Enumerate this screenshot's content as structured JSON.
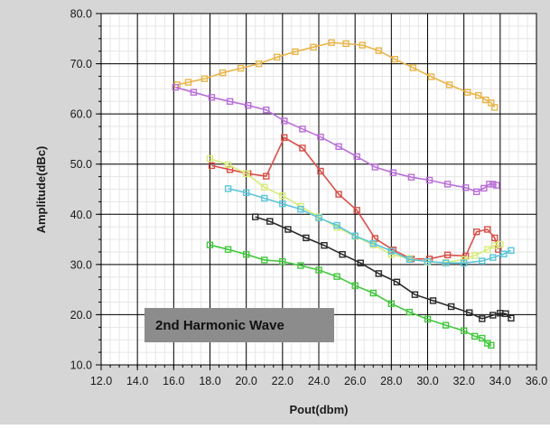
{
  "chart_data": {
    "type": "line",
    "title": "",
    "xlabel": "Pout(dbm)",
    "ylabel": "Amplitude(dBc)",
    "xlim": [
      12.0,
      36.0
    ],
    "ylim": [
      10.0,
      80.0
    ],
    "x_ticks": [
      "12.0",
      "14.0",
      "16.0",
      "18.0",
      "20.0",
      "22.0",
      "24.0",
      "26.0",
      "28.0",
      "30.0",
      "32.0",
      "34.0",
      "36.0"
    ],
    "y_ticks": [
      "10.0",
      "20.0",
      "30.0",
      "40.0",
      "50.0",
      "60.0",
      "70.0",
      "80.0"
    ],
    "grid": true,
    "annotation": "2nd Harmonic Wave",
    "series": [
      {
        "color": "#e8b54a",
        "points": [
          [
            16.2,
            65.8
          ],
          [
            16.8,
            66.3
          ],
          [
            17.7,
            67.0
          ],
          [
            18.7,
            68.2
          ],
          [
            19.7,
            69.1
          ],
          [
            20.7,
            70.0
          ],
          [
            21.7,
            71.3
          ],
          [
            22.7,
            72.4
          ],
          [
            23.7,
            73.3
          ],
          [
            24.7,
            74.2
          ],
          [
            25.5,
            74.0
          ],
          [
            26.4,
            73.7
          ],
          [
            27.3,
            72.6
          ],
          [
            28.2,
            70.9
          ],
          [
            29.2,
            69.2
          ],
          [
            30.2,
            67.4
          ],
          [
            31.2,
            65.8
          ],
          [
            32.2,
            64.3
          ],
          [
            32.8,
            63.7
          ],
          [
            33.2,
            62.8
          ],
          [
            33.5,
            62.2
          ],
          [
            33.7,
            61.3
          ]
        ]
      },
      {
        "color": "#b970d8",
        "points": [
          [
            16.1,
            65.3
          ],
          [
            17.1,
            64.3
          ],
          [
            18.1,
            63.3
          ],
          [
            19.1,
            62.5
          ],
          [
            20.1,
            61.7
          ],
          [
            21.1,
            60.8
          ],
          [
            22.1,
            58.6
          ],
          [
            23.1,
            57.0
          ],
          [
            24.1,
            55.4
          ],
          [
            25.1,
            53.5
          ],
          [
            26.1,
            51.5
          ],
          [
            27.1,
            49.4
          ],
          [
            28.1,
            48.3
          ],
          [
            29.1,
            47.4
          ],
          [
            30.1,
            46.8
          ],
          [
            31.1,
            46.0
          ],
          [
            32.1,
            45.3
          ],
          [
            32.7,
            44.5
          ],
          [
            33.1,
            45.2
          ],
          [
            33.4,
            46.0
          ],
          [
            33.6,
            46.0
          ],
          [
            33.8,
            45.8
          ]
        ]
      },
      {
        "color": "#d9504a",
        "points": [
          [
            18.1,
            49.7
          ],
          [
            19.1,
            48.9
          ],
          [
            20.1,
            48.1
          ],
          [
            21.1,
            47.6
          ],
          [
            22.1,
            55.3
          ],
          [
            23.1,
            53.2
          ],
          [
            24.1,
            48.6
          ],
          [
            25.1,
            44.0
          ],
          [
            26.1,
            40.8
          ],
          [
            27.1,
            35.2
          ],
          [
            28.1,
            32.9
          ],
          [
            29.1,
            31.1
          ],
          [
            30.1,
            31.1
          ],
          [
            31.1,
            31.9
          ],
          [
            32.1,
            31.7
          ],
          [
            32.7,
            36.5
          ],
          [
            33.3,
            37.0
          ],
          [
            33.7,
            35.3
          ],
          [
            33.9,
            33.0
          ]
        ]
      },
      {
        "color": "#d7ec7a",
        "points": [
          [
            18.0,
            51.1
          ],
          [
            19.0,
            49.9
          ],
          [
            20.0,
            48.1
          ],
          [
            21.0,
            45.4
          ],
          [
            22.0,
            43.7
          ],
          [
            23.0,
            41.6
          ],
          [
            24.0,
            39.5
          ],
          [
            25.0,
            37.4
          ],
          [
            26.0,
            35.6
          ],
          [
            27.0,
            33.9
          ],
          [
            28.0,
            32.0
          ],
          [
            29.0,
            31.2
          ],
          [
            30.0,
            30.5
          ],
          [
            31.0,
            30.4
          ],
          [
            32.0,
            31.0
          ],
          [
            32.6,
            31.8
          ],
          [
            33.3,
            33.0
          ],
          [
            33.7,
            33.8
          ],
          [
            34.0,
            34.0
          ]
        ]
      },
      {
        "color": "#5bc5d8",
        "points": [
          [
            19.0,
            45.1
          ],
          [
            20.0,
            44.3
          ],
          [
            21.0,
            43.2
          ],
          [
            22.0,
            42.1
          ],
          [
            23.0,
            41.0
          ],
          [
            24.0,
            39.3
          ],
          [
            25.0,
            37.8
          ],
          [
            26.0,
            35.7
          ],
          [
            27.0,
            34.2
          ],
          [
            28.0,
            32.7
          ],
          [
            29.0,
            31.0
          ],
          [
            30.0,
            30.6
          ],
          [
            31.0,
            30.3
          ],
          [
            32.0,
            30.3
          ],
          [
            33.0,
            30.7
          ],
          [
            33.6,
            31.4
          ],
          [
            34.2,
            32.1
          ],
          [
            34.6,
            32.8
          ]
        ]
      },
      {
        "color": "#2a2a2a",
        "points": [
          [
            20.5,
            39.5
          ],
          [
            21.3,
            38.6
          ],
          [
            22.3,
            37.0
          ],
          [
            23.3,
            35.3
          ],
          [
            24.3,
            33.8
          ],
          [
            25.3,
            32.0
          ],
          [
            26.3,
            30.3
          ],
          [
            27.3,
            28.2
          ],
          [
            28.3,
            26.5
          ],
          [
            29.3,
            24.0
          ],
          [
            30.3,
            22.8
          ],
          [
            31.3,
            21.6
          ],
          [
            32.3,
            20.4
          ],
          [
            33.0,
            19.2
          ],
          [
            33.6,
            19.9
          ],
          [
            34.0,
            20.3
          ],
          [
            34.3,
            20.2
          ],
          [
            34.6,
            19.3
          ]
        ]
      },
      {
        "color": "#43c83d",
        "points": [
          [
            18.0,
            33.9
          ],
          [
            19.0,
            33.0
          ],
          [
            20.0,
            32.0
          ],
          [
            21.0,
            30.9
          ],
          [
            22.0,
            30.6
          ],
          [
            23.0,
            29.8
          ],
          [
            24.0,
            28.9
          ],
          [
            25.0,
            27.6
          ],
          [
            26.0,
            25.8
          ],
          [
            27.0,
            24.3
          ],
          [
            28.0,
            22.2
          ],
          [
            29.0,
            20.5
          ],
          [
            30.0,
            19.1
          ],
          [
            31.0,
            17.9
          ],
          [
            32.0,
            16.8
          ],
          [
            32.6,
            15.7
          ],
          [
            33.0,
            15.3
          ],
          [
            33.3,
            14.3
          ],
          [
            33.5,
            13.9
          ]
        ]
      }
    ]
  }
}
